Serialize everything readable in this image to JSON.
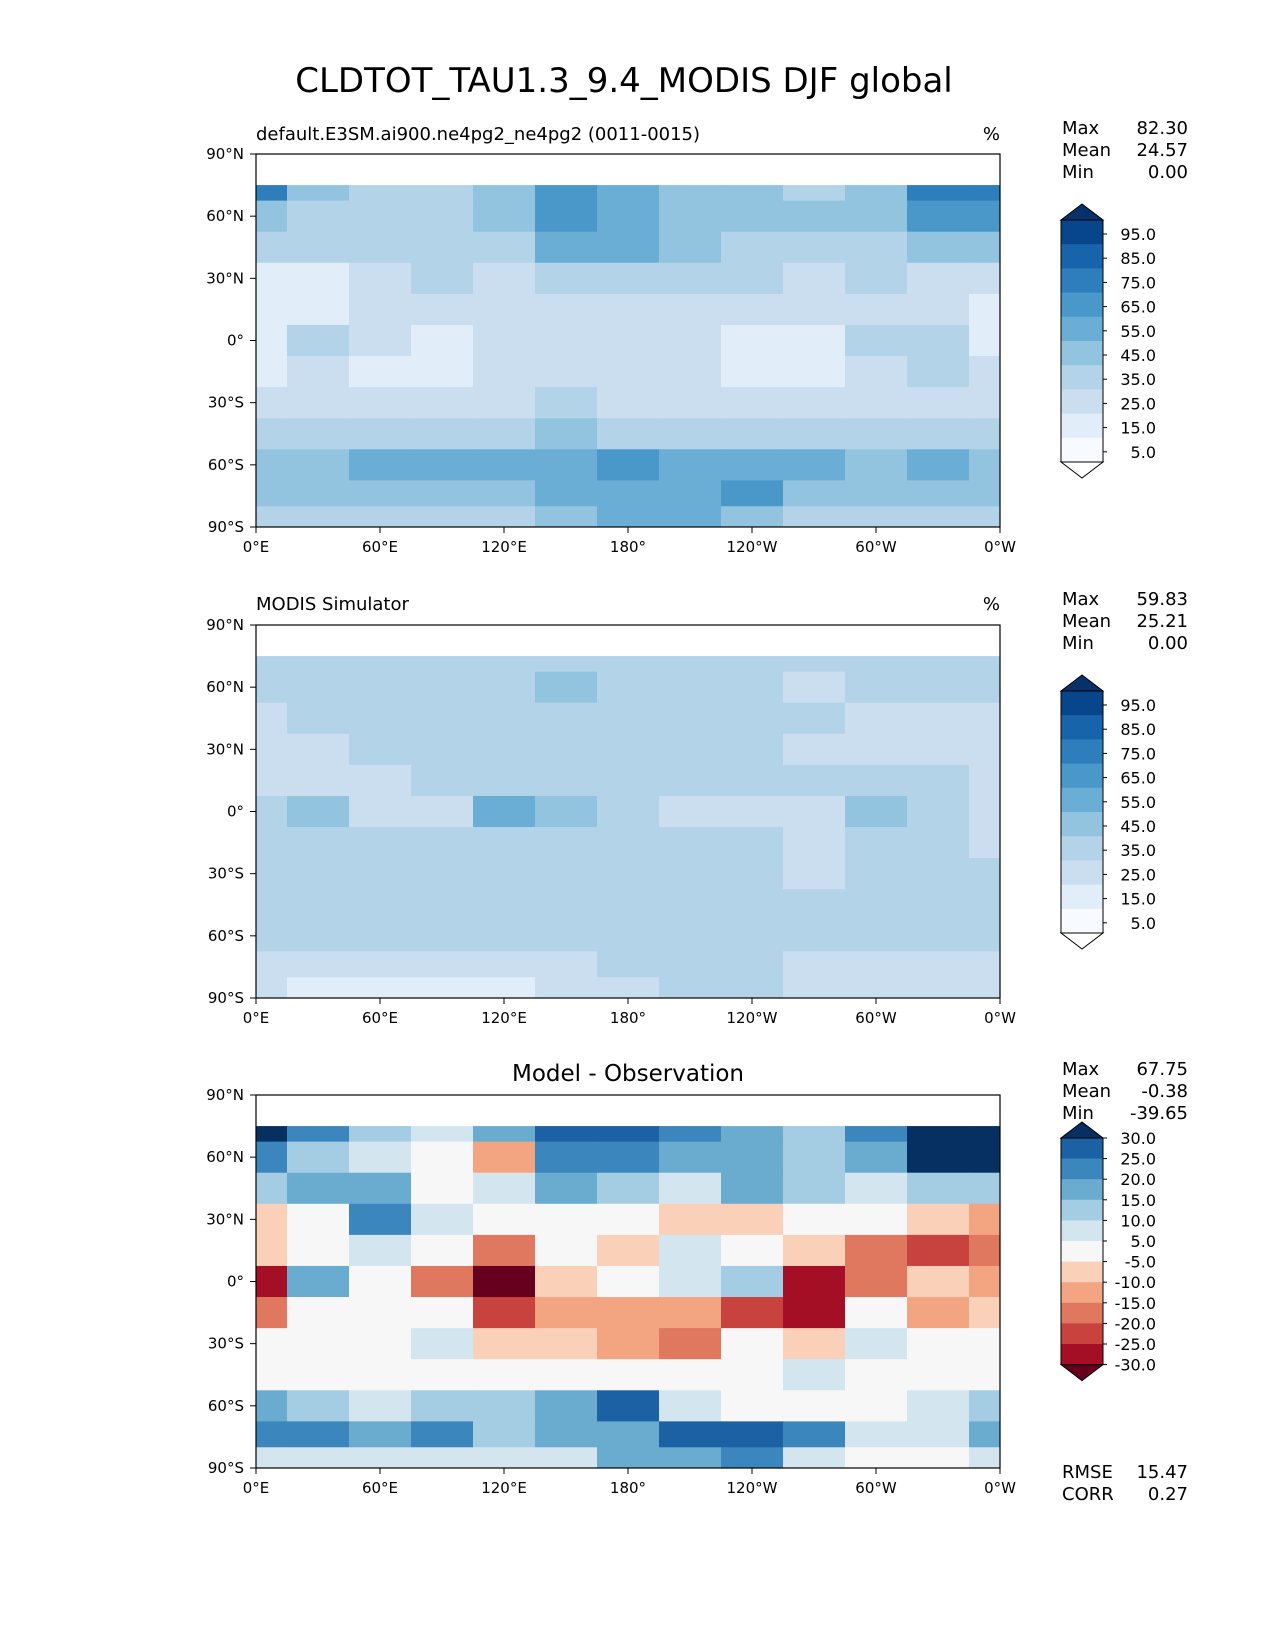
{
  "figure": {
    "title": "CLDTOT_TAU1.3_9.4_MODIS DJF global"
  },
  "panels": [
    {
      "left_title": "default.E3SM.ai900.ne4pg2_ne4pg2 (0011-0015)",
      "center_title": "",
      "units": "%",
      "stats": [
        {
          "label": "Max",
          "value": "82.30"
        },
        {
          "label": "Mean",
          "value": "24.57"
        },
        {
          "label": "Min",
          "value": "0.00"
        }
      ],
      "extra_stats": [],
      "colorbar": {
        "labels": [
          "95.0",
          "85.0",
          "75.0",
          "65.0",
          "55.0",
          "45.0",
          "35.0",
          "25.0",
          "15.0",
          "5.0"
        ],
        "colors": [
          "#f7fbff",
          "#e1edf8",
          "#cadef0",
          "#abcfe5",
          "#82badb",
          "#5a9fcf",
          "#3a87c1",
          "#1f6eb2",
          "#0b539a",
          "#08306b"
        ]
      }
    },
    {
      "left_title": "MODIS Simulator",
      "center_title": "",
      "units": "%",
      "stats": [
        {
          "label": "Max",
          "value": "59.83"
        },
        {
          "label": "Mean",
          "value": "25.21"
        },
        {
          "label": "Min",
          "value": "0.00"
        }
      ],
      "extra_stats": [],
      "colorbar": {
        "labels": [
          "95.0",
          "85.0",
          "75.0",
          "65.0",
          "55.0",
          "45.0",
          "35.0",
          "25.0",
          "15.0",
          "5.0"
        ],
        "colors": [
          "#f7fbff",
          "#e1edf8",
          "#cadef0",
          "#abcfe5",
          "#82badb",
          "#5a9fcf",
          "#3a87c1",
          "#1f6eb2",
          "#0b539a",
          "#08306b"
        ]
      }
    },
    {
      "left_title": "",
      "center_title": "Model - Observation",
      "units": "",
      "stats": [
        {
          "label": "Max",
          "value": "67.75"
        },
        {
          "label": "Mean",
          "value": "-0.38"
        },
        {
          "label": "Min",
          "value": "-39.65"
        }
      ],
      "extra_stats": [
        {
          "label": "RMSE",
          "value": "15.47"
        },
        {
          "label": "CORR",
          "value": "0.27"
        }
      ],
      "colorbar": {
        "labels": [
          "30.0",
          "25.0",
          "20.0",
          "15.0",
          "10.0",
          "5.0",
          "-5.0",
          "-10.0",
          "-15.0",
          "-20.0",
          "-25.0",
          "-30.0"
        ],
        "colors": [
          "#67001f",
          "#a50f26",
          "#c8423e",
          "#e0775f",
          "#f3a582",
          "#fbd0b9",
          "#f7f7f7",
          "#d3e6f0",
          "#a4cde3",
          "#6aabd0",
          "#3a86bd",
          "#1b61a4",
          "#053061"
        ]
      }
    }
  ],
  "chart_data": {
    "type": "heatmap",
    "xlabel": "",
    "ylabel": "",
    "xticks": [
      "0°E",
      "60°E",
      "120°E",
      "180°",
      "120°W",
      "60°W",
      "0°W"
    ],
    "yticks": [
      "90°N",
      "60°N",
      "30°N",
      "0°",
      "30°S",
      "60°S",
      "90°S"
    ],
    "xlim": [
      0,
      360
    ],
    "ylim": [
      -90,
      90
    ],
    "lon": [
      0,
      30,
      60,
      90,
      120,
      150,
      180,
      210,
      240,
      270,
      300,
      330,
      360
    ],
    "lat": [
      75,
      60,
      45,
      30,
      15,
      0,
      -15,
      -30,
      -45,
      -60,
      -75,
      -85
    ],
    "fields": [
      {
        "name": "default.E3SM.ai900.ne4pg2_ne4pg2 (0011-0015)",
        "levels": [
          5,
          15,
          25,
          35,
          45,
          55,
          65,
          75,
          85,
          95
        ],
        "grid": [
          [
            70,
            35,
            28,
            30,
            40,
            55,
            50,
            40,
            35,
            30,
            35,
            65,
            70
          ],
          [
            40,
            30,
            30,
            28,
            35,
            55,
            50,
            40,
            38,
            35,
            40,
            55,
            60
          ],
          [
            30,
            25,
            32,
            30,
            30,
            45,
            45,
            38,
            32,
            30,
            30,
            40,
            35
          ],
          [
            10,
            8,
            22,
            25,
            22,
            30,
            25,
            30,
            28,
            22,
            25,
            20,
            15
          ],
          [
            5,
            10,
            18,
            22,
            18,
            18,
            18,
            22,
            20,
            15,
            18,
            20,
            10
          ],
          [
            10,
            25,
            15,
            8,
            20,
            22,
            22,
            18,
            12,
            8,
            25,
            30,
            12
          ],
          [
            12,
            22,
            12,
            12,
            15,
            18,
            20,
            15,
            10,
            5,
            20,
            25,
            15
          ],
          [
            15,
            18,
            20,
            18,
            22,
            25,
            22,
            20,
            18,
            15,
            18,
            20,
            18
          ],
          [
            30,
            30,
            32,
            30,
            30,
            35,
            32,
            30,
            30,
            28,
            30,
            32,
            30
          ],
          [
            42,
            42,
            45,
            50,
            48,
            50,
            55,
            50,
            45,
            45,
            40,
            45,
            42
          ],
          [
            35,
            38,
            42,
            40,
            38,
            45,
            50,
            48,
            55,
            40,
            35,
            35,
            35
          ],
          [
            30,
            30,
            32,
            30,
            30,
            38,
            45,
            45,
            40,
            32,
            30,
            30,
            30
          ]
        ]
      },
      {
        "name": "MODIS Simulator",
        "levels": [
          5,
          15,
          25,
          35,
          45,
          55,
          65,
          75,
          85,
          95
        ],
        "grid": [
          [
            25,
            25,
            25,
            25,
            25,
            25,
            25,
            25,
            25,
            25,
            25,
            25,
            25
          ],
          [
            25,
            25,
            28,
            28,
            30,
            35,
            28,
            25,
            25,
            22,
            25,
            25,
            25
          ],
          [
            22,
            25,
            25,
            28,
            28,
            30,
            28,
            25,
            25,
            25,
            22,
            22,
            22
          ],
          [
            20,
            18,
            25,
            28,
            30,
            28,
            25,
            30,
            28,
            22,
            20,
            22,
            20
          ],
          [
            15,
            15,
            22,
            25,
            28,
            30,
            25,
            30,
            28,
            25,
            25,
            25,
            18
          ],
          [
            28,
            35,
            22,
            20,
            45,
            38,
            25,
            22,
            18,
            15,
            38,
            30,
            22
          ],
          [
            25,
            25,
            25,
            28,
            30,
            30,
            28,
            25,
            25,
            20,
            30,
            25,
            22
          ],
          [
            25,
            25,
            28,
            30,
            28,
            30,
            28,
            28,
            28,
            22,
            25,
            25,
            25
          ],
          [
            32,
            30,
            28,
            30,
            30,
            30,
            28,
            30,
            32,
            30,
            28,
            28,
            30
          ],
          [
            28,
            28,
            30,
            28,
            28,
            30,
            30,
            28,
            28,
            28,
            28,
            28,
            28
          ],
          [
            18,
            18,
            15,
            15,
            15,
            18,
            25,
            25,
            25,
            22,
            15,
            15,
            18
          ],
          [
            15,
            12,
            10,
            12,
            12,
            15,
            22,
            25,
            25,
            22,
            18,
            18,
            15
          ]
        ]
      },
      {
        "name": "Model - Observation",
        "levels": [
          -30,
          -25,
          -20,
          -15,
          -10,
          -5,
          5,
          10,
          15,
          20,
          25,
          30
        ],
        "grid": [
          [
            32,
            22,
            10,
            8,
            18,
            25,
            28,
            22,
            18,
            12,
            20,
            32,
            34
          ],
          [
            22,
            10,
            5,
            2,
            -15,
            20,
            22,
            18,
            16,
            10,
            18,
            30,
            32
          ],
          [
            10,
            15,
            15,
            2,
            5,
            15,
            12,
            8,
            15,
            10,
            5,
            12,
            10
          ],
          [
            -8,
            -2,
            24,
            8,
            0,
            2,
            0,
            -8,
            -8,
            2,
            -2,
            -10,
            -15
          ],
          [
            -10,
            2,
            5,
            2,
            -20,
            0,
            -10,
            5,
            -5,
            -10,
            -18,
            -25,
            -20
          ],
          [
            -28,
            18,
            2,
            -20,
            -32,
            -10,
            -5,
            8,
            12,
            -30,
            -20,
            -8,
            -15
          ],
          [
            -20,
            2,
            0,
            -2,
            -25,
            -15,
            -12,
            -15,
            -22,
            -28,
            -5,
            -12,
            -8
          ],
          [
            2,
            0,
            0,
            5,
            -8,
            -10,
            -15,
            -20,
            -5,
            -8,
            5,
            0,
            2
          ],
          [
            0,
            2,
            0,
            0,
            2,
            2,
            0,
            0,
            0,
            8,
            2,
            0,
            0
          ],
          [
            18,
            10,
            8,
            12,
            10,
            15,
            28,
            5,
            2,
            2,
            0,
            5,
            12
          ],
          [
            22,
            20,
            15,
            20,
            10,
            15,
            18,
            25,
            28,
            22,
            5,
            8,
            18
          ],
          [
            8,
            5,
            5,
            8,
            5,
            5,
            15,
            18,
            22,
            8,
            2,
            2,
            8
          ]
        ]
      }
    ]
  }
}
